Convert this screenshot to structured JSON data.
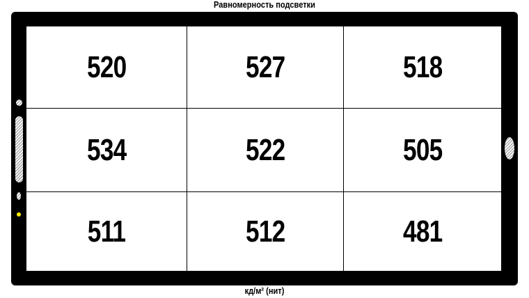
{
  "title": "Равномерность подсветки",
  "unit_label": "кд/м² (нит)",
  "grid": [
    [
      "520",
      "527",
      "518"
    ],
    [
      "534",
      "522",
      "505"
    ],
    [
      "511",
      "512",
      "481"
    ]
  ],
  "colors": {
    "bezel": "#000000",
    "screen": "#ffffff",
    "indicator_led": "#ffee00"
  }
}
